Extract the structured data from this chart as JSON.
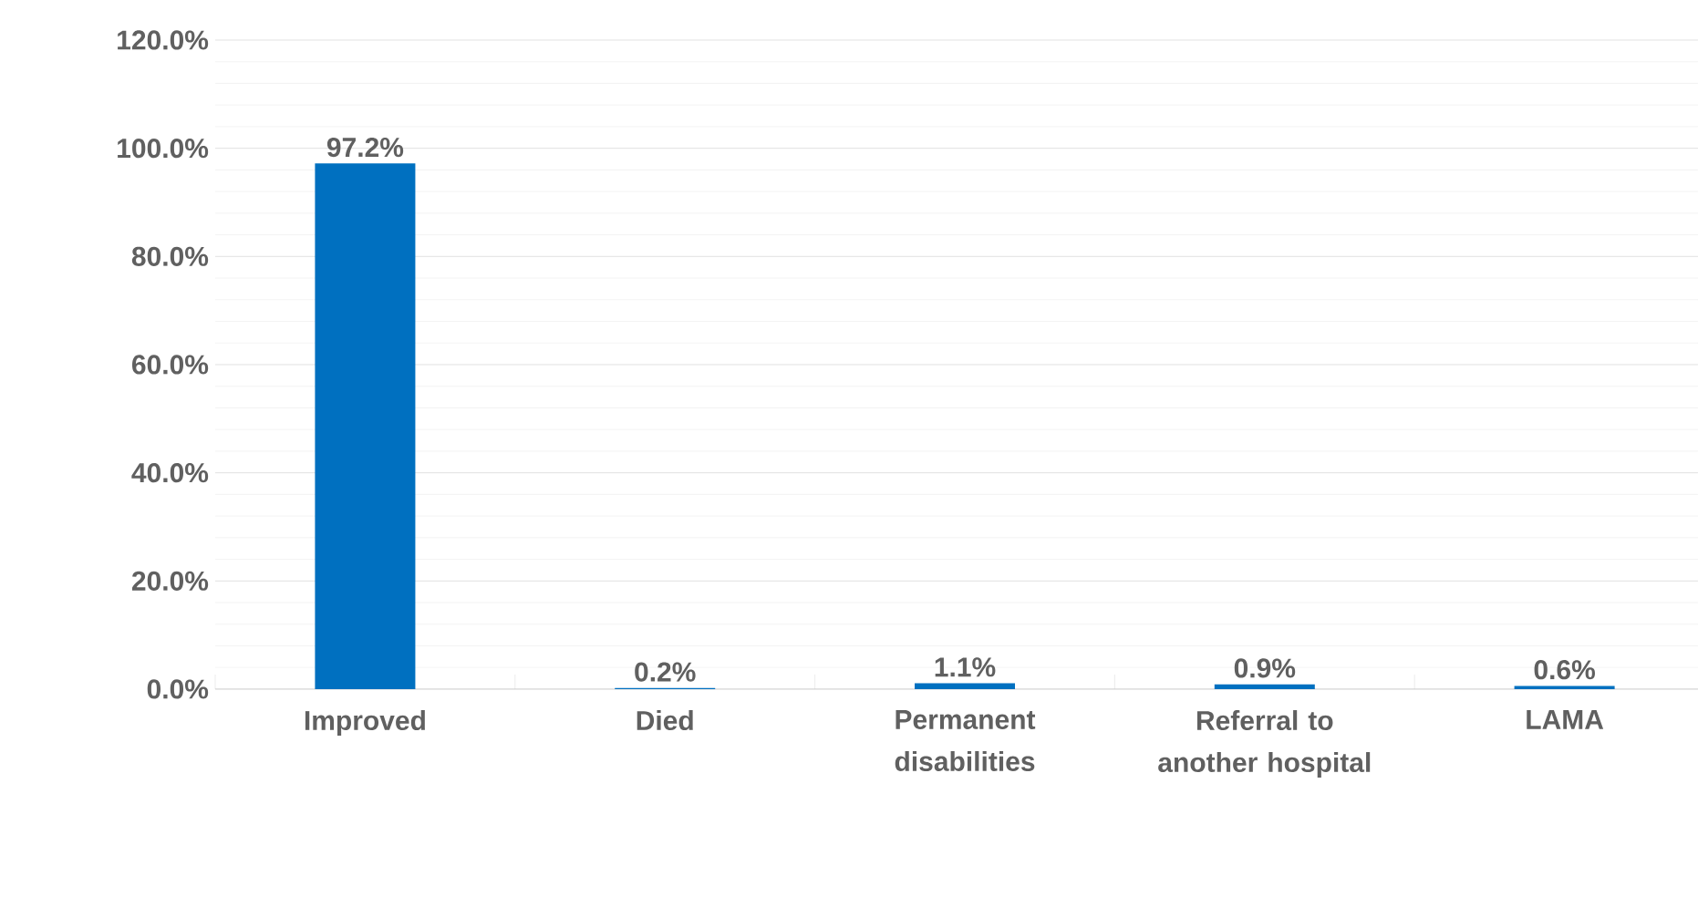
{
  "chart_data": {
    "type": "bar",
    "categories": [
      "Improved",
      "Died",
      "Permanent disabilities",
      "Referral to another hospital",
      "LAMA"
    ],
    "values": [
      97.2,
      0.2,
      1.1,
      0.9,
      0.6
    ],
    "value_labels": [
      "97.2%",
      "0.2%",
      "1.1%",
      "0.9%",
      "0.6%"
    ],
    "color": "#0070c0",
    "ylim": [
      0,
      120
    ],
    "yticks": [
      {
        "value": 0,
        "label": "0.0%"
      },
      {
        "value": 20,
        "label": "20.0%"
      },
      {
        "value": 40,
        "label": "40.0%"
      },
      {
        "value": 60,
        "label": "60.0%"
      },
      {
        "value": 80,
        "label": "80.0%"
      },
      {
        "value": 100,
        "label": "100.0%"
      },
      {
        "value": 120,
        "label": "120.0%"
      }
    ],
    "grid": "y"
  }
}
